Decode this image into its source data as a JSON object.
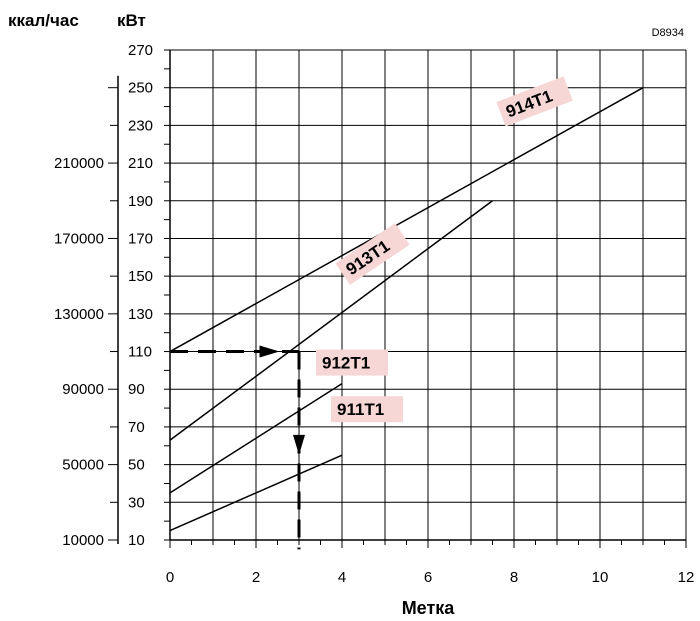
{
  "header": {
    "left_unit": "ккал/час",
    "right_unit": "кВт",
    "figure_code": "D8934"
  },
  "chart_data": {
    "type": "line",
    "xlabel": "Метка",
    "x_ticks": [
      "0",
      "2",
      "4",
      "6",
      "8",
      "10",
      "12"
    ],
    "xlim": [
      0,
      12
    ],
    "ylabel": "кВт",
    "y_ticks": [
      "270",
      "250",
      "230",
      "210",
      "190",
      "170",
      "150",
      "130",
      "110",
      "90",
      "70",
      "50",
      "30",
      "10"
    ],
    "ylim": [
      10,
      270
    ],
    "y2label": "ккал/час",
    "y2_ticks": [
      "210000",
      "170000",
      "130000",
      "90000",
      "50000",
      "10000"
    ],
    "grid": true,
    "series": [
      {
        "name": "911T1",
        "x": [
          0,
          4
        ],
        "y": [
          15,
          55
        ]
      },
      {
        "name": "912T1",
        "x": [
          0,
          4
        ],
        "y": [
          35,
          93
        ]
      },
      {
        "name": "913T1",
        "x": [
          0,
          7.5
        ],
        "y": [
          63,
          190
        ]
      },
      {
        "name": "914T1",
        "x": [
          0,
          11
        ],
        "y": [
          110,
          250
        ]
      }
    ],
    "example_path": {
      "x": [
        0,
        3,
        3
      ],
      "y": [
        110,
        110,
        5
      ],
      "style": "dashed-arrows"
    },
    "label_color": "#f7d6d6"
  }
}
